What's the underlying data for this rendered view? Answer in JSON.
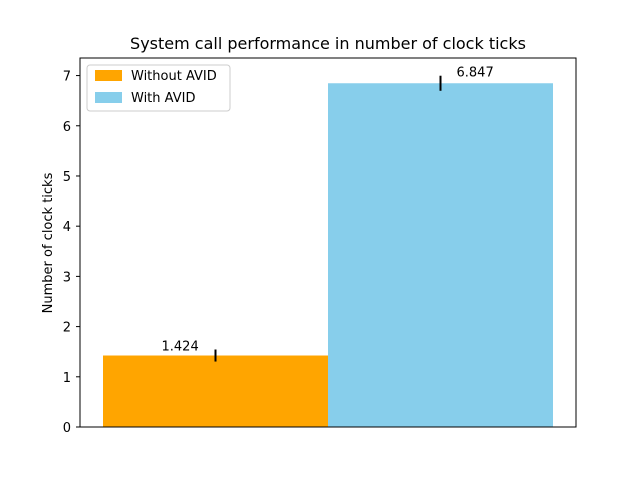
{
  "chart_data": {
    "type": "bar",
    "title": "System call performance in number of clock ticks",
    "xlabel": "",
    "ylabel": "Number of clock ticks",
    "ylim": [
      0,
      7.35
    ],
    "yticks": [
      0,
      1,
      2,
      3,
      4,
      5,
      6,
      7
    ],
    "grid": false,
    "legend_position": "top-left",
    "series": [
      {
        "name": "Without AVID",
        "value": 1.424,
        "error": 0.12,
        "color": "#ffa500",
        "label": "1.424"
      },
      {
        "name": "With AVID",
        "value": 6.847,
        "error": 0.15,
        "color": "#87ceeb",
        "label": "6.847"
      }
    ]
  }
}
